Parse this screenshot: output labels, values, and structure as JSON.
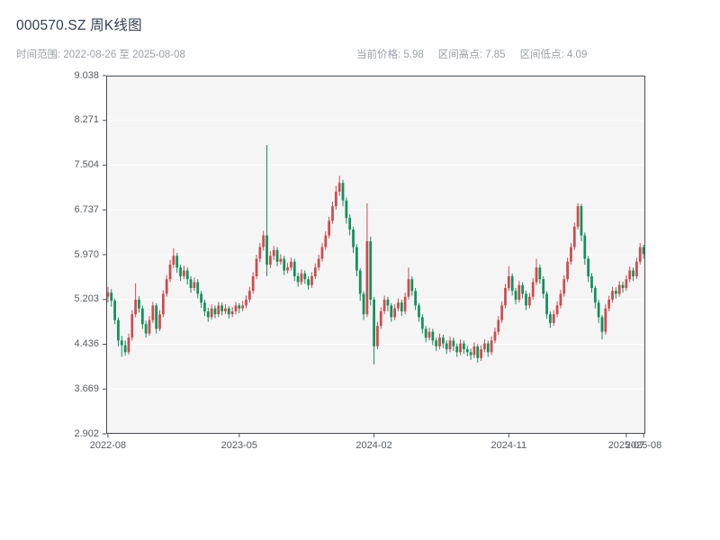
{
  "header": {
    "title": "000570.SZ 周K线图",
    "time_range": "时间范围: 2022-08-26 至 2025-08-08",
    "current_price": "当前价格: 5.98",
    "range_high": "区间高点: 7.85",
    "range_low": "区间低点: 4.09"
  },
  "chart_data": {
    "type": "candlestick",
    "symbol": "000570.SZ",
    "interval": "weekly",
    "title": "000570.SZ 周K线图",
    "start_date": "2022-08-26",
    "end_date": "2025-08-08",
    "current_price": 5.98,
    "range_high": 7.85,
    "range_low": 4.09,
    "y_min": 2.902,
    "y_max": 9.038,
    "y_ticks": [
      9.038,
      8.271,
      7.504,
      6.737,
      5.97,
      5.203,
      4.436,
      3.669,
      2.902
    ],
    "y_tick_labels": [
      "9.038",
      "8.271",
      "7.504",
      "6.737",
      "5.970",
      "5.203",
      "4.436",
      "3.669",
      "2.902"
    ],
    "x_ticks": [
      {
        "label": "2022-08",
        "index": 0
      },
      {
        "label": "2023-05",
        "index": 38
      },
      {
        "label": "2024-02",
        "index": 77
      },
      {
        "label": "2024-11",
        "index": 116
      },
      {
        "label": "2025-07",
        "index": 150
      },
      {
        "label": "2025-08",
        "index": 155
      }
    ],
    "colors": {
      "up": "#cf4b4e",
      "down": "#12915a",
      "panel": "#f5f5f6",
      "grid": "#ffffff",
      "spine": "#4a4f55"
    },
    "candles": [
      [
        5.25,
        5.42,
        5.15,
        5.32
      ],
      [
        5.32,
        5.38,
        5.08,
        5.18
      ],
      [
        5.18,
        5.22,
        4.78,
        4.85
      ],
      [
        4.85,
        4.9,
        4.4,
        4.5
      ],
      [
        4.5,
        4.58,
        4.22,
        4.42
      ],
      [
        4.42,
        4.5,
        4.24,
        4.3
      ],
      [
        4.3,
        4.62,
        4.26,
        4.55
      ],
      [
        4.55,
        5.02,
        4.5,
        4.95
      ],
      [
        4.95,
        5.48,
        4.9,
        5.2
      ],
      [
        5.2,
        5.26,
        4.98,
        5.05
      ],
      [
        5.05,
        5.1,
        4.7,
        4.78
      ],
      [
        4.78,
        4.84,
        4.55,
        4.62
      ],
      [
        4.62,
        4.92,
        4.58,
        4.85
      ],
      [
        4.85,
        5.16,
        4.8,
        5.1
      ],
      [
        5.1,
        5.14,
        4.62,
        4.7
      ],
      [
        4.7,
        5.02,
        4.66,
        4.95
      ],
      [
        4.95,
        5.36,
        4.9,
        5.3
      ],
      [
        5.3,
        5.62,
        5.25,
        5.55
      ],
      [
        5.55,
        5.88,
        5.5,
        5.8
      ],
      [
        5.8,
        6.08,
        5.74,
        5.95
      ],
      [
        5.95,
        6.0,
        5.66,
        5.75
      ],
      [
        5.75,
        5.8,
        5.52,
        5.6
      ],
      [
        5.6,
        5.78,
        5.55,
        5.7
      ],
      [
        5.7,
        5.75,
        5.46,
        5.55
      ],
      [
        5.55,
        5.6,
        5.32,
        5.4
      ],
      [
        5.4,
        5.58,
        5.35,
        5.5
      ],
      [
        5.5,
        5.55,
        5.22,
        5.3
      ],
      [
        5.3,
        5.35,
        5.06,
        5.15
      ],
      [
        5.15,
        5.2,
        4.92,
        5.0
      ],
      [
        5.0,
        5.06,
        4.82,
        4.9
      ],
      [
        4.9,
        5.12,
        4.86,
        5.05
      ],
      [
        5.05,
        5.1,
        4.88,
        4.95
      ],
      [
        4.95,
        5.16,
        4.9,
        5.1
      ],
      [
        5.1,
        5.15,
        4.93,
        5.0
      ],
      [
        5.0,
        5.12,
        4.95,
        5.05
      ],
      [
        5.05,
        5.09,
        4.88,
        4.95
      ],
      [
        4.95,
        5.07,
        4.9,
        5.0
      ],
      [
        5.0,
        5.16,
        4.95,
        5.1
      ],
      [
        5.1,
        5.14,
        4.97,
        5.05
      ],
      [
        5.05,
        5.18,
        5.0,
        5.1
      ],
      [
        5.1,
        5.27,
        5.05,
        5.2
      ],
      [
        5.2,
        5.42,
        5.15,
        5.35
      ],
      [
        5.35,
        5.67,
        5.3,
        5.6
      ],
      [
        5.6,
        5.97,
        5.55,
        5.9
      ],
      [
        5.9,
        6.17,
        5.84,
        6.1
      ],
      [
        6.1,
        6.38,
        6.04,
        6.3
      ],
      [
        6.3,
        7.85,
        5.6,
        5.8
      ],
      [
        5.8,
        6.03,
        5.74,
        5.95
      ],
      [
        5.95,
        6.12,
        5.88,
        6.05
      ],
      [
        6.05,
        6.1,
        5.77,
        5.85
      ],
      [
        5.85,
        5.98,
        5.8,
        5.9
      ],
      [
        5.9,
        5.95,
        5.62,
        5.7
      ],
      [
        5.7,
        5.83,
        5.65,
        5.75
      ],
      [
        5.75,
        5.92,
        5.7,
        5.85
      ],
      [
        5.85,
        5.9,
        5.52,
        5.6
      ],
      [
        5.6,
        5.66,
        5.42,
        5.5
      ],
      [
        5.5,
        5.72,
        5.45,
        5.65
      ],
      [
        5.65,
        5.7,
        5.47,
        5.55
      ],
      [
        5.55,
        5.6,
        5.37,
        5.45
      ],
      [
        5.45,
        5.67,
        5.4,
        5.6
      ],
      [
        5.6,
        5.82,
        5.55,
        5.75
      ],
      [
        5.75,
        5.97,
        5.7,
        5.9
      ],
      [
        5.9,
        6.17,
        5.85,
        6.1
      ],
      [
        6.1,
        6.37,
        6.05,
        6.3
      ],
      [
        6.3,
        6.62,
        6.25,
        6.55
      ],
      [
        6.55,
        6.88,
        6.5,
        6.8
      ],
      [
        6.8,
        7.15,
        6.74,
        7.05
      ],
      [
        7.05,
        7.32,
        6.98,
        7.2
      ],
      [
        7.2,
        7.25,
        6.8,
        6.9
      ],
      [
        6.9,
        6.95,
        6.5,
        6.6
      ],
      [
        6.6,
        6.66,
        6.3,
        6.4
      ],
      [
        6.4,
        6.45,
        6.0,
        6.1
      ],
      [
        6.1,
        6.15,
        5.6,
        5.7
      ],
      [
        5.7,
        5.74,
        5.18,
        5.3
      ],
      [
        5.3,
        5.34,
        4.85,
        4.95
      ],
      [
        4.95,
        6.85,
        4.9,
        6.2
      ],
      [
        6.2,
        6.28,
        5.1,
        5.2
      ],
      [
        5.2,
        5.25,
        4.09,
        4.4
      ],
      [
        4.4,
        4.82,
        4.35,
        4.75
      ],
      [
        4.75,
        5.07,
        4.7,
        5.0
      ],
      [
        5.0,
        5.27,
        4.95,
        5.2
      ],
      [
        5.2,
        5.25,
        5.0,
        5.1
      ],
      [
        5.1,
        5.14,
        4.82,
        4.9
      ],
      [
        4.9,
        5.12,
        4.85,
        5.05
      ],
      [
        5.05,
        5.22,
        5.0,
        5.15
      ],
      [
        5.15,
        5.2,
        4.92,
        5.0
      ],
      [
        5.0,
        5.32,
        4.95,
        5.25
      ],
      [
        5.25,
        5.75,
        5.2,
        5.55
      ],
      [
        5.55,
        5.6,
        5.27,
        5.35
      ],
      [
        5.35,
        5.4,
        5.02,
        5.1
      ],
      [
        5.1,
        5.14,
        4.82,
        4.9
      ],
      [
        4.9,
        4.95,
        4.62,
        4.7
      ],
      [
        4.7,
        4.75,
        4.47,
        4.55
      ],
      [
        4.55,
        4.72,
        4.5,
        4.65
      ],
      [
        4.65,
        4.7,
        4.42,
        4.5
      ],
      [
        4.5,
        4.55,
        4.32,
        4.4
      ],
      [
        4.4,
        4.62,
        4.35,
        4.55
      ],
      [
        4.55,
        4.6,
        4.37,
        4.45
      ],
      [
        4.45,
        4.5,
        4.27,
        4.35
      ],
      [
        4.35,
        4.57,
        4.3,
        4.5
      ],
      [
        4.5,
        4.55,
        4.32,
        4.4
      ],
      [
        4.4,
        4.45,
        4.22,
        4.3
      ],
      [
        4.3,
        4.52,
        4.25,
        4.45
      ],
      [
        4.45,
        4.5,
        4.27,
        4.35
      ],
      [
        4.35,
        4.41,
        4.23,
        4.3
      ],
      [
        4.3,
        4.36,
        4.17,
        4.25
      ],
      [
        4.25,
        4.47,
        4.2,
        4.4
      ],
      [
        4.4,
        4.44,
        4.12,
        4.2
      ],
      [
        4.2,
        4.42,
        4.15,
        4.35
      ],
      [
        4.35,
        4.52,
        4.3,
        4.45
      ],
      [
        4.45,
        4.5,
        4.22,
        4.3
      ],
      [
        4.3,
        4.57,
        4.25,
        4.5
      ],
      [
        4.5,
        4.72,
        4.45,
        4.65
      ],
      [
        4.65,
        4.92,
        4.6,
        4.85
      ],
      [
        4.85,
        5.17,
        4.8,
        5.1
      ],
      [
        5.1,
        5.47,
        5.05,
        5.4
      ],
      [
        5.4,
        5.77,
        5.35,
        5.6
      ],
      [
        5.6,
        5.65,
        5.27,
        5.35
      ],
      [
        5.35,
        5.4,
        5.12,
        5.2
      ],
      [
        5.2,
        5.52,
        5.15,
        5.45
      ],
      [
        5.45,
        5.5,
        5.22,
        5.3
      ],
      [
        5.3,
        5.35,
        5.02,
        5.1
      ],
      [
        5.1,
        5.32,
        5.05,
        5.25
      ],
      [
        5.25,
        5.57,
        5.2,
        5.5
      ],
      [
        5.5,
        5.9,
        5.45,
        5.75
      ],
      [
        5.75,
        5.8,
        5.47,
        5.55
      ],
      [
        5.55,
        5.6,
        5.22,
        5.3
      ],
      [
        5.3,
        5.34,
        4.87,
        4.95
      ],
      [
        4.95,
        5.0,
        4.72,
        4.8
      ],
      [
        4.8,
        5.02,
        4.75,
        4.95
      ],
      [
        4.95,
        5.17,
        4.9,
        5.1
      ],
      [
        5.1,
        5.37,
        5.05,
        5.3
      ],
      [
        5.3,
        5.62,
        5.25,
        5.55
      ],
      [
        5.55,
        5.92,
        5.5,
        5.85
      ],
      [
        5.85,
        6.17,
        5.8,
        6.1
      ],
      [
        6.1,
        6.52,
        6.05,
        6.45
      ],
      [
        6.45,
        6.85,
        6.4,
        6.8
      ],
      [
        6.8,
        6.84,
        6.2,
        6.3
      ],
      [
        6.3,
        6.35,
        5.8,
        5.9
      ],
      [
        5.9,
        5.95,
        5.5,
        5.6
      ],
      [
        5.6,
        5.65,
        5.32,
        5.4
      ],
      [
        5.4,
        5.44,
        5.05,
        5.15
      ],
      [
        5.15,
        5.2,
        4.8,
        4.9
      ],
      [
        4.9,
        4.94,
        4.52,
        4.65
      ],
      [
        4.65,
        5.12,
        4.6,
        5.05
      ],
      [
        5.05,
        5.27,
        5.0,
        5.2
      ],
      [
        5.2,
        5.42,
        5.15,
        5.35
      ],
      [
        5.35,
        5.41,
        5.22,
        5.3
      ],
      [
        5.3,
        5.52,
        5.25,
        5.45
      ],
      [
        5.45,
        5.51,
        5.32,
        5.4
      ],
      [
        5.4,
        5.62,
        5.35,
        5.55
      ],
      [
        5.55,
        5.77,
        5.5,
        5.7
      ],
      [
        5.7,
        5.75,
        5.52,
        5.6
      ],
      [
        5.6,
        5.92,
        5.55,
        5.85
      ],
      [
        5.85,
        6.17,
        5.8,
        6.1
      ],
      [
        6.1,
        6.14,
        5.9,
        5.98
      ]
    ]
  }
}
